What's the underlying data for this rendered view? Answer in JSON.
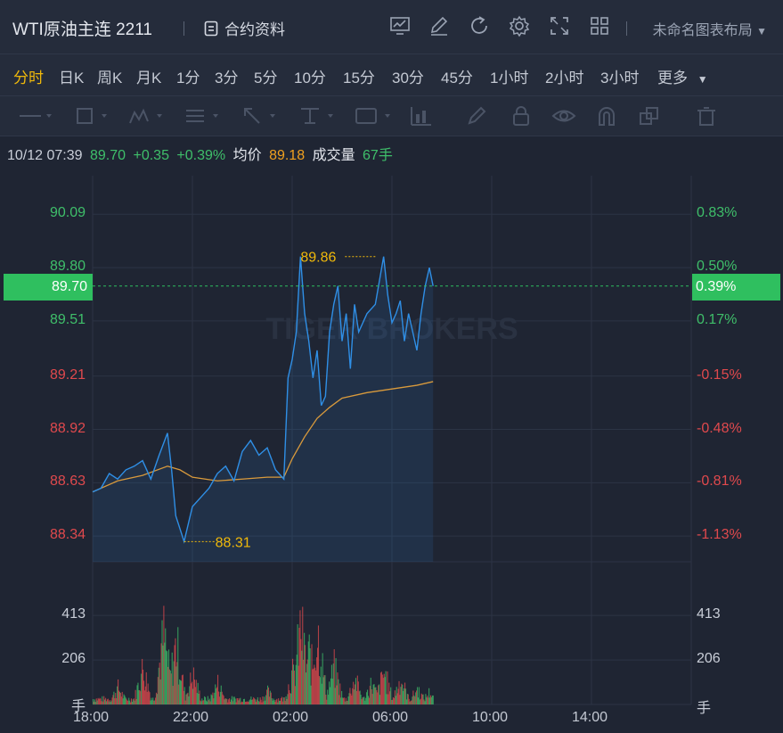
{
  "header": {
    "title": "WTI原油主连 2211",
    "contract_info": "合约资料",
    "layout_name": "未命名图表布局",
    "icons": [
      "chart-line-icon",
      "edit-icon",
      "refresh-icon",
      "settings-icon",
      "fullscreen-icon",
      "grid-layout-icon"
    ]
  },
  "periods": [
    "分时",
    "日K",
    "周K",
    "月K",
    "1分",
    "3分",
    "5分",
    "10分",
    "15分",
    "30分",
    "45分",
    "1小时",
    "2小时",
    "3小时",
    "更多"
  ],
  "active_period": "分时",
  "info": {
    "datetime": "10/12 07:39",
    "price": "89.70",
    "change": "+0.35",
    "change_pct": "+0.39%",
    "avg_label": "均价",
    "avg": "89.18",
    "volume_label": "成交量",
    "volume": "67手"
  },
  "axis": {
    "left_prices": [
      "90.09",
      "89.80",
      "89.51",
      "89.21",
      "88.92",
      "88.63",
      "88.34"
    ],
    "right_pcts": [
      "0.83%",
      "0.50%",
      "0.17%",
      "-0.15%",
      "-0.48%",
      "-0.81%",
      "-1.13%"
    ],
    "current_price": "89.70",
    "current_pct": "0.39%",
    "vol_ticks": [
      "413",
      "206"
    ],
    "vol_unit": "手",
    "times": [
      "18:00",
      "22:00",
      "02:00",
      "06:00",
      "10:00",
      "14:00"
    ]
  },
  "annotations": {
    "high": "89.86",
    "low": "88.31"
  },
  "watermark": "TIGER BROKERS",
  "colors": {
    "up": "#3fbf6a",
    "down": "#e0494d",
    "price_line": "#2f8fe6",
    "avg_line": "#d99a3c",
    "highlight": "#f0b90b"
  },
  "chart_data": {
    "type": "line",
    "x_ticks": [
      "18:00",
      "22:00",
      "02:00",
      "06:00",
      "10:00",
      "14:00"
    ],
    "price_series_name": "",
    "price": [
      [
        "18:00",
        88.58
      ],
      [
        "18:20",
        88.6
      ],
      [
        "18:40",
        88.68
      ],
      [
        "19:00",
        88.65
      ],
      [
        "19:20",
        88.7
      ],
      [
        "19:40",
        88.72
      ],
      [
        "20:00",
        88.75
      ],
      [
        "20:20",
        88.65
      ],
      [
        "20:40",
        88.78
      ],
      [
        "21:00",
        88.9
      ],
      [
        "21:10",
        88.7
      ],
      [
        "21:20",
        88.45
      ],
      [
        "21:40",
        88.31
      ],
      [
        "22:00",
        88.5
      ],
      [
        "22:20",
        88.55
      ],
      [
        "22:40",
        88.6
      ],
      [
        "23:00",
        88.68
      ],
      [
        "23:20",
        88.72
      ],
      [
        "23:40",
        88.64
      ],
      [
        "00:00",
        88.8
      ],
      [
        "00:20",
        88.86
      ],
      [
        "00:40",
        88.78
      ],
      [
        "01:00",
        88.82
      ],
      [
        "01:20",
        88.7
      ],
      [
        "01:40",
        88.65
      ],
      [
        "01:50",
        89.2
      ],
      [
        "02:00",
        89.3
      ],
      [
        "02:10",
        89.45
      ],
      [
        "02:20",
        89.86
      ],
      [
        "02:30",
        89.55
      ],
      [
        "02:40",
        89.4
      ],
      [
        "02:50",
        89.2
      ],
      [
        "03:00",
        89.35
      ],
      [
        "03:10",
        89.05
      ],
      [
        "03:20",
        89.1
      ],
      [
        "03:30",
        89.45
      ],
      [
        "03:40",
        89.6
      ],
      [
        "03:50",
        89.7
      ],
      [
        "04:00",
        89.4
      ],
      [
        "04:10",
        89.55
      ],
      [
        "04:20",
        89.25
      ],
      [
        "04:30",
        89.6
      ],
      [
        "04:40",
        89.45
      ],
      [
        "05:00",
        89.55
      ],
      [
        "05:20",
        89.6
      ],
      [
        "05:40",
        89.86
      ],
      [
        "05:50",
        89.65
      ],
      [
        "06:00",
        89.5
      ],
      [
        "06:10",
        89.55
      ],
      [
        "06:20",
        89.62
      ],
      [
        "06:30",
        89.4
      ],
      [
        "06:40",
        89.55
      ],
      [
        "06:50",
        89.45
      ],
      [
        "07:00",
        89.35
      ],
      [
        "07:10",
        89.55
      ],
      [
        "07:20",
        89.7
      ],
      [
        "07:30",
        89.8
      ],
      [
        "07:39",
        89.7
      ]
    ],
    "avg_series_name": "",
    "avg": [
      [
        "18:00",
        88.58
      ],
      [
        "19:00",
        88.64
      ],
      [
        "20:00",
        88.67
      ],
      [
        "21:00",
        88.72
      ],
      [
        "21:30",
        88.7
      ],
      [
        "22:00",
        88.66
      ],
      [
        "23:00",
        88.64
      ],
      [
        "00:00",
        88.65
      ],
      [
        "01:00",
        88.66
      ],
      [
        "01:40",
        88.66
      ],
      [
        "02:00",
        88.76
      ],
      [
        "02:30",
        88.88
      ],
      [
        "03:00",
        88.98
      ],
      [
        "03:30",
        89.04
      ],
      [
        "04:00",
        89.09
      ],
      [
        "05:00",
        89.12
      ],
      [
        "06:00",
        89.14
      ],
      [
        "07:00",
        89.16
      ],
      [
        "07:39",
        89.18
      ]
    ],
    "y_range": [
      88.2,
      90.3
    ],
    "volume_range": [
      0,
      620
    ],
    "volume_peaks": [
      [
        "19:00",
        120
      ],
      [
        "20:00",
        260
      ],
      [
        "20:50",
        500
      ],
      [
        "21:20",
        440
      ],
      [
        "22:00",
        210
      ],
      [
        "23:00",
        150
      ],
      [
        "01:00",
        90
      ],
      [
        "02:00",
        220
      ],
      [
        "02:20",
        560
      ],
      [
        "02:40",
        370
      ],
      [
        "03:00",
        520
      ],
      [
        "03:40",
        260
      ],
      [
        "04:30",
        180
      ],
      [
        "05:10",
        150
      ],
      [
        "05:40",
        230
      ],
      [
        "06:20",
        180
      ],
      [
        "07:00",
        110
      ],
      [
        "07:30",
        90
      ]
    ],
    "grid": true
  }
}
